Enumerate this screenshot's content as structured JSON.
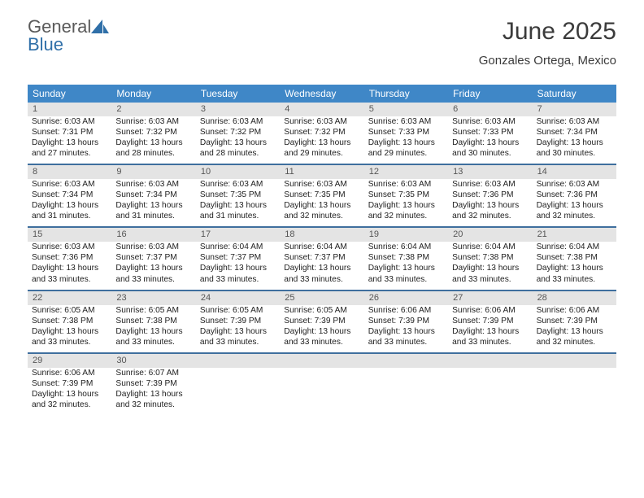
{
  "logo": {
    "text1": "General",
    "text2": "Blue"
  },
  "header": {
    "title": "June 2025",
    "subtitle": "Gonzales Ortega, Mexico"
  },
  "colors": {
    "dow_bg": "#3f87c7",
    "dow_text": "#ffffff",
    "week_border": "#3f6f9e",
    "daynum_bg": "#e4e4e4",
    "daynum_text": "#565656",
    "body_text": "#222222",
    "title_text": "#3b3b3b",
    "logo_gray": "#5a5a5a",
    "logo_blue": "#2f6fa8"
  },
  "days_of_week": [
    "Sunday",
    "Monday",
    "Tuesday",
    "Wednesday",
    "Thursday",
    "Friday",
    "Saturday"
  ],
  "weeks": [
    [
      {
        "n": "1",
        "sr": "Sunrise: 6:03 AM",
        "ss": "Sunset: 7:31 PM",
        "d1": "Daylight: 13 hours",
        "d2": "and 27 minutes."
      },
      {
        "n": "2",
        "sr": "Sunrise: 6:03 AM",
        "ss": "Sunset: 7:32 PM",
        "d1": "Daylight: 13 hours",
        "d2": "and 28 minutes."
      },
      {
        "n": "3",
        "sr": "Sunrise: 6:03 AM",
        "ss": "Sunset: 7:32 PM",
        "d1": "Daylight: 13 hours",
        "d2": "and 28 minutes."
      },
      {
        "n": "4",
        "sr": "Sunrise: 6:03 AM",
        "ss": "Sunset: 7:32 PM",
        "d1": "Daylight: 13 hours",
        "d2": "and 29 minutes."
      },
      {
        "n": "5",
        "sr": "Sunrise: 6:03 AM",
        "ss": "Sunset: 7:33 PM",
        "d1": "Daylight: 13 hours",
        "d2": "and 29 minutes."
      },
      {
        "n": "6",
        "sr": "Sunrise: 6:03 AM",
        "ss": "Sunset: 7:33 PM",
        "d1": "Daylight: 13 hours",
        "d2": "and 30 minutes."
      },
      {
        "n": "7",
        "sr": "Sunrise: 6:03 AM",
        "ss": "Sunset: 7:34 PM",
        "d1": "Daylight: 13 hours",
        "d2": "and 30 minutes."
      }
    ],
    [
      {
        "n": "8",
        "sr": "Sunrise: 6:03 AM",
        "ss": "Sunset: 7:34 PM",
        "d1": "Daylight: 13 hours",
        "d2": "and 31 minutes."
      },
      {
        "n": "9",
        "sr": "Sunrise: 6:03 AM",
        "ss": "Sunset: 7:34 PM",
        "d1": "Daylight: 13 hours",
        "d2": "and 31 minutes."
      },
      {
        "n": "10",
        "sr": "Sunrise: 6:03 AM",
        "ss": "Sunset: 7:35 PM",
        "d1": "Daylight: 13 hours",
        "d2": "and 31 minutes."
      },
      {
        "n": "11",
        "sr": "Sunrise: 6:03 AM",
        "ss": "Sunset: 7:35 PM",
        "d1": "Daylight: 13 hours",
        "d2": "and 32 minutes."
      },
      {
        "n": "12",
        "sr": "Sunrise: 6:03 AM",
        "ss": "Sunset: 7:35 PM",
        "d1": "Daylight: 13 hours",
        "d2": "and 32 minutes."
      },
      {
        "n": "13",
        "sr": "Sunrise: 6:03 AM",
        "ss": "Sunset: 7:36 PM",
        "d1": "Daylight: 13 hours",
        "d2": "and 32 minutes."
      },
      {
        "n": "14",
        "sr": "Sunrise: 6:03 AM",
        "ss": "Sunset: 7:36 PM",
        "d1": "Daylight: 13 hours",
        "d2": "and 32 minutes."
      }
    ],
    [
      {
        "n": "15",
        "sr": "Sunrise: 6:03 AM",
        "ss": "Sunset: 7:36 PM",
        "d1": "Daylight: 13 hours",
        "d2": "and 33 minutes."
      },
      {
        "n": "16",
        "sr": "Sunrise: 6:03 AM",
        "ss": "Sunset: 7:37 PM",
        "d1": "Daylight: 13 hours",
        "d2": "and 33 minutes."
      },
      {
        "n": "17",
        "sr": "Sunrise: 6:04 AM",
        "ss": "Sunset: 7:37 PM",
        "d1": "Daylight: 13 hours",
        "d2": "and 33 minutes."
      },
      {
        "n": "18",
        "sr": "Sunrise: 6:04 AM",
        "ss": "Sunset: 7:37 PM",
        "d1": "Daylight: 13 hours",
        "d2": "and 33 minutes."
      },
      {
        "n": "19",
        "sr": "Sunrise: 6:04 AM",
        "ss": "Sunset: 7:38 PM",
        "d1": "Daylight: 13 hours",
        "d2": "and 33 minutes."
      },
      {
        "n": "20",
        "sr": "Sunrise: 6:04 AM",
        "ss": "Sunset: 7:38 PM",
        "d1": "Daylight: 13 hours",
        "d2": "and 33 minutes."
      },
      {
        "n": "21",
        "sr": "Sunrise: 6:04 AM",
        "ss": "Sunset: 7:38 PM",
        "d1": "Daylight: 13 hours",
        "d2": "and 33 minutes."
      }
    ],
    [
      {
        "n": "22",
        "sr": "Sunrise: 6:05 AM",
        "ss": "Sunset: 7:38 PM",
        "d1": "Daylight: 13 hours",
        "d2": "and 33 minutes."
      },
      {
        "n": "23",
        "sr": "Sunrise: 6:05 AM",
        "ss": "Sunset: 7:38 PM",
        "d1": "Daylight: 13 hours",
        "d2": "and 33 minutes."
      },
      {
        "n": "24",
        "sr": "Sunrise: 6:05 AM",
        "ss": "Sunset: 7:39 PM",
        "d1": "Daylight: 13 hours",
        "d2": "and 33 minutes."
      },
      {
        "n": "25",
        "sr": "Sunrise: 6:05 AM",
        "ss": "Sunset: 7:39 PM",
        "d1": "Daylight: 13 hours",
        "d2": "and 33 minutes."
      },
      {
        "n": "26",
        "sr": "Sunrise: 6:06 AM",
        "ss": "Sunset: 7:39 PM",
        "d1": "Daylight: 13 hours",
        "d2": "and 33 minutes."
      },
      {
        "n": "27",
        "sr": "Sunrise: 6:06 AM",
        "ss": "Sunset: 7:39 PM",
        "d1": "Daylight: 13 hours",
        "d2": "and 33 minutes."
      },
      {
        "n": "28",
        "sr": "Sunrise: 6:06 AM",
        "ss": "Sunset: 7:39 PM",
        "d1": "Daylight: 13 hours",
        "d2": "and 32 minutes."
      }
    ],
    [
      {
        "n": "29",
        "sr": "Sunrise: 6:06 AM",
        "ss": "Sunset: 7:39 PM",
        "d1": "Daylight: 13 hours",
        "d2": "and 32 minutes."
      },
      {
        "n": "30",
        "sr": "Sunrise: 6:07 AM",
        "ss": "Sunset: 7:39 PM",
        "d1": "Daylight: 13 hours",
        "d2": "and 32 minutes."
      },
      {
        "n": "",
        "sr": "",
        "ss": "",
        "d1": "",
        "d2": ""
      },
      {
        "n": "",
        "sr": "",
        "ss": "",
        "d1": "",
        "d2": ""
      },
      {
        "n": "",
        "sr": "",
        "ss": "",
        "d1": "",
        "d2": ""
      },
      {
        "n": "",
        "sr": "",
        "ss": "",
        "d1": "",
        "d2": ""
      },
      {
        "n": "",
        "sr": "",
        "ss": "",
        "d1": "",
        "d2": ""
      }
    ]
  ]
}
